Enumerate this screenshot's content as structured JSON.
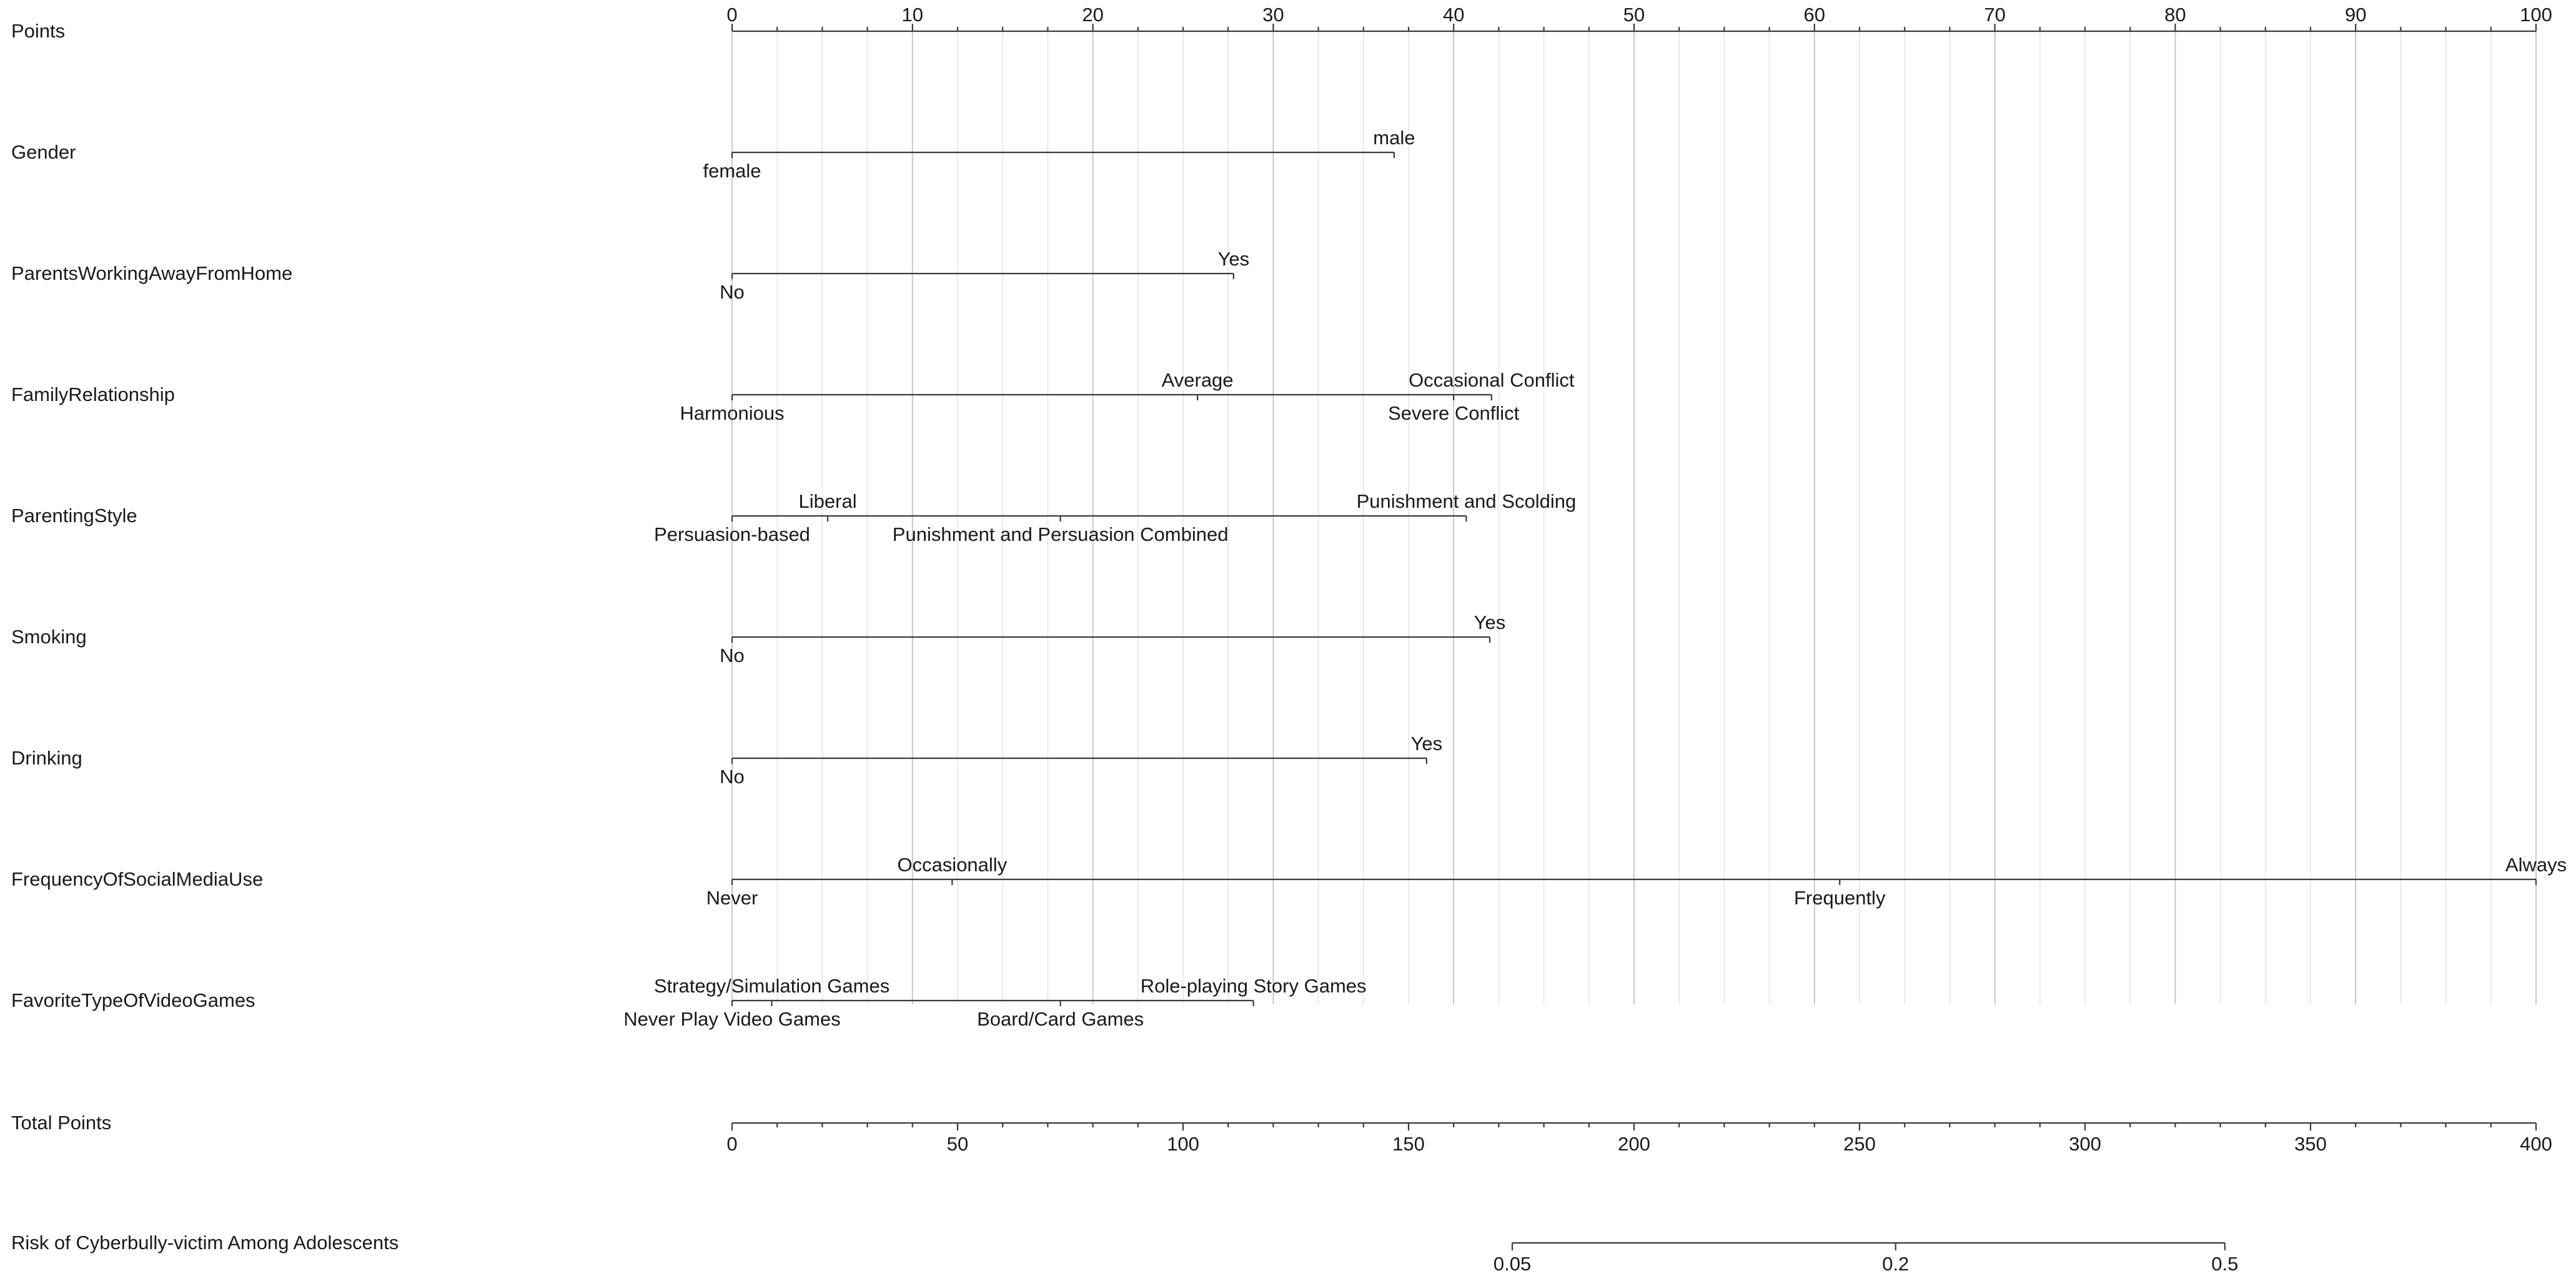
{
  "chart_data": {
    "type": "nomogram",
    "grid": true,
    "points_axis": {
      "label": "Points",
      "range": [
        0,
        100
      ],
      "ticks": [
        0,
        10,
        20,
        30,
        40,
        50,
        60,
        70,
        80,
        90,
        100
      ],
      "minor_step": 2.5
    },
    "variables": [
      {
        "name": "Gender",
        "levels": [
          {
            "label": "female",
            "points": 0,
            "side": "below"
          },
          {
            "label": "male",
            "points": 36.7,
            "side": "above"
          }
        ]
      },
      {
        "name": "ParentsWorkingAwayFromHome",
        "levels": [
          {
            "label": "No",
            "points": 0,
            "side": "below"
          },
          {
            "label": "Yes",
            "points": 27.8,
            "side": "above"
          }
        ]
      },
      {
        "name": "FamilyRelationship",
        "levels": [
          {
            "label": "Harmonious",
            "points": 0,
            "side": "below"
          },
          {
            "label": "Average",
            "points": 25.8,
            "side": "above"
          },
          {
            "label": "Severe Conflict",
            "points": 40.0,
            "side": "below"
          },
          {
            "label": "Occasional Conflict",
            "points": 42.1,
            "side": "above"
          }
        ]
      },
      {
        "name": "ParentingStyle",
        "levels": [
          {
            "label": "Persuasion-based",
            "points": 0,
            "side": "below"
          },
          {
            "label": "Liberal",
            "points": 5.3,
            "side": "above"
          },
          {
            "label": "Punishment and Persuasion Combined",
            "points": 18.2,
            "side": "below"
          },
          {
            "label": "Punishment and Scolding",
            "points": 40.7,
            "side": "above"
          }
        ]
      },
      {
        "name": "Smoking",
        "levels": [
          {
            "label": "No",
            "points": 0,
            "side": "below"
          },
          {
            "label": "Yes",
            "points": 42.0,
            "side": "above"
          }
        ]
      },
      {
        "name": "Drinking",
        "levels": [
          {
            "label": "No",
            "points": 0,
            "side": "below"
          },
          {
            "label": "Yes",
            "points": 38.5,
            "side": "above"
          }
        ]
      },
      {
        "name": "FrequencyOfSocialMediaUse",
        "levels": [
          {
            "label": "Never",
            "points": 0,
            "side": "below"
          },
          {
            "label": "Occasionally",
            "points": 12.2,
            "side": "above"
          },
          {
            "label": "Frequently",
            "points": 61.4,
            "side": "below"
          },
          {
            "label": "Always",
            "points": 100,
            "side": "above"
          }
        ]
      },
      {
        "name": "FavoriteTypeOfVideoGames",
        "levels": [
          {
            "label": "Never Play Video Games",
            "points": 0,
            "side": "below"
          },
          {
            "label": "Strategy/Simulation Games",
            "points": 2.2,
            "side": "above"
          },
          {
            "label": "Board/Card Games",
            "points": 18.2,
            "side": "below"
          },
          {
            "label": "Role-playing Story Games",
            "points": 28.9,
            "side": "above"
          }
        ]
      }
    ],
    "total_points_axis": {
      "label": "Total Points",
      "range": [
        0,
        400
      ],
      "ticks": [
        0,
        50,
        100,
        150,
        200,
        250,
        300,
        350,
        400
      ],
      "minor_step": 10
    },
    "risk_axis": {
      "label": "Risk of Cyberbully-victim Among Adolescents",
      "scale": "total_points",
      "ticks": [
        {
          "label": "0.05",
          "value": 0.05,
          "total_points": 173
        },
        {
          "label": "0.2",
          "value": 0.2,
          "total_points": 258
        },
        {
          "label": "0.5",
          "value": 0.5,
          "total_points": 331
        }
      ]
    }
  }
}
